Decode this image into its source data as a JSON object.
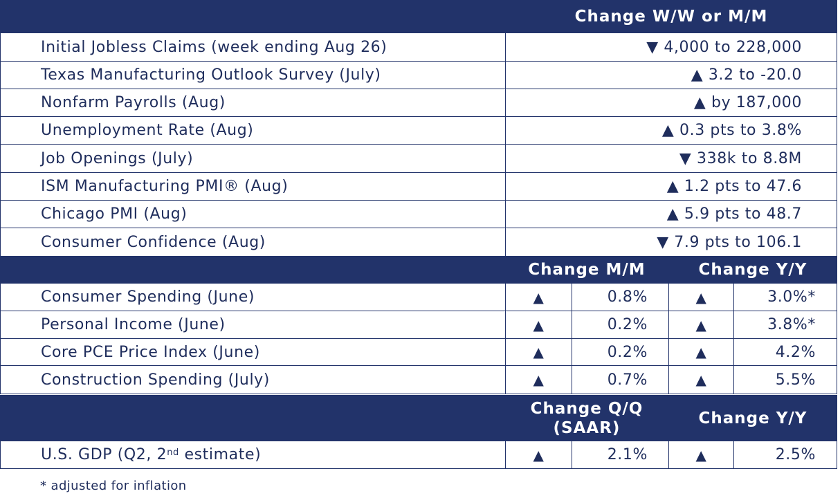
{
  "header1": {
    "label": "Change W/W or M/M"
  },
  "section1": [
    {
      "label": "Initial Jobless Claims (week ending Aug 26)",
      "value": "▼ 4,000 to 228,000"
    },
    {
      "label": "Texas Manufacturing Outlook Survey (July)",
      "value": "▲ 3.2 to -20.0"
    },
    {
      "label": "Nonfarm Payrolls (Aug)",
      "value": "▲ by 187,000"
    },
    {
      "label": "Unemployment Rate (Aug)",
      "value": "▲ 0.3 pts to 3.8%"
    },
    {
      "label": "Job Openings (July)",
      "value": "▼ 338k to 8.8M"
    },
    {
      "label": "ISM Manufacturing PMI® (Aug)",
      "value": "▲ 1.2 pts to 47.6"
    },
    {
      "label": "Chicago PMI (Aug)",
      "value": "▲ 5.9 pts to 48.7"
    },
    {
      "label": "Consumer Confidence (Aug)",
      "value": "▼ 7.9 pts to 106.1"
    }
  ],
  "header2": {
    "col1": "Change M/M",
    "col2": "Change Y/Y"
  },
  "section2": [
    {
      "label": "Consumer Spending (June)",
      "arrow1": "▲",
      "mm": "0.8%",
      "arrow2": "▲",
      "yy": "3.0%*"
    },
    {
      "label": "Personal Income (June)",
      "arrow1": "▲",
      "mm": "0.2%",
      "arrow2": "▲",
      "yy": "3.8%*"
    },
    {
      "label": "Core PCE Price Index (June)",
      "arrow1": "▲",
      "mm": "0.2%",
      "arrow2": "▲",
      "yy": "4.2%"
    },
    {
      "label": "Construction Spending (July)",
      "arrow1": "▲",
      "mm": "0.7%",
      "arrow2": "▲",
      "yy": "5.5%"
    }
  ],
  "header3": {
    "col1_line1": "Change Q/Q",
    "col1_line2": "(SAAR)",
    "col2": "Change Y/Y"
  },
  "section3": [
    {
      "label_pre": "U.S. GDP (Q2, 2",
      "label_sup": "nd",
      "label_post": " estimate)",
      "arrow1": "▲",
      "qq": "2.1%",
      "arrow2": "▲",
      "yy": "2.5%"
    }
  ],
  "footnote": "* adjusted for inflation"
}
